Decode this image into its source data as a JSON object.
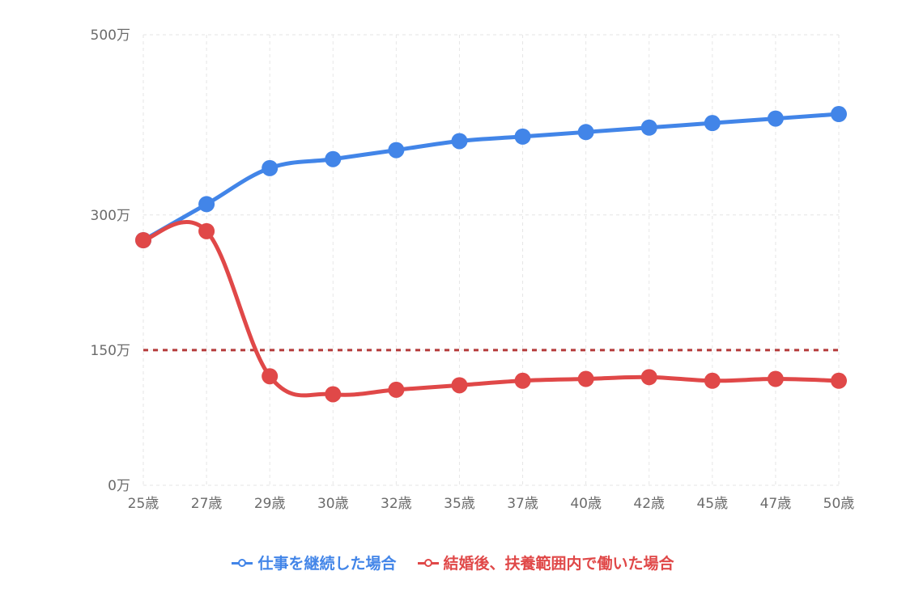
{
  "chart_data": {
    "type": "line",
    "title": "",
    "xlabel": "",
    "ylabel": "",
    "categories": [
      "25歳",
      "27歳",
      "29歳",
      "30歳",
      "32歳",
      "35歳",
      "37歳",
      "40歳",
      "42歳",
      "45歳",
      "47歳",
      "50歳"
    ],
    "y_ticks": [
      {
        "value": 0,
        "label": "0万"
      },
      {
        "value": 150,
        "label": "150万"
      },
      {
        "value": 300,
        "label": "300万"
      },
      {
        "value": 500,
        "label": "500万"
      }
    ],
    "ylim": [
      0,
      500
    ],
    "grid": true,
    "legend_position": "bottom",
    "series": [
      {
        "name": "仕事を継続した場合",
        "color": "#4285e8",
        "values": [
          272,
          312,
          352,
          362,
          372,
          382,
          387,
          392,
          397,
          402,
          407,
          412
        ]
      },
      {
        "name": "結婚後、扶養範囲内で働いた場合",
        "color": "#e04848",
        "values": [
          272,
          282,
          121,
          101,
          106,
          111,
          116,
          118,
          120,
          116,
          118,
          116
        ]
      }
    ],
    "reference_line": {
      "value": 150,
      "color": "#b53a3a"
    }
  }
}
